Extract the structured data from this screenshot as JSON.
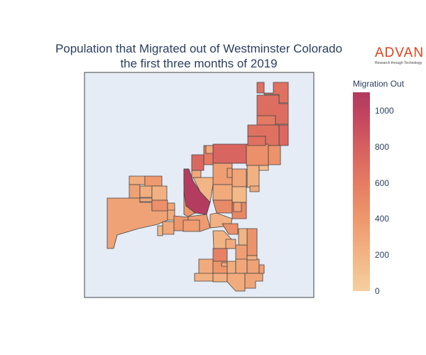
{
  "title_line1": "Population that Migrated out of Westminster Colorado",
  "title_line2": "the first three months of 2019",
  "logo": {
    "word": "ADVAN",
    "tagline": "Research through Technology"
  },
  "colorbar": {
    "title": "Migration Out",
    "range": [
      0,
      1100
    ],
    "ticks": [
      "0",
      "200",
      "400",
      "600",
      "800",
      "1000"
    ],
    "colors": [
      "#f5d0a0",
      "#f2b484",
      "#ee986d",
      "#e57c62",
      "#d66060",
      "#c04360",
      "#b03a5e"
    ]
  },
  "map_background": "#e5ecf6",
  "chart_data": {
    "type": "choropleth",
    "title": "Population that Migrated out of Westminster Colorado the first three months of 2019",
    "colorbar_title": "Migration Out",
    "color_range": [
      0,
      1100
    ],
    "regions": [
      {
        "v": 620
      },
      {
        "v": 650
      },
      {
        "v": 560
      },
      {
        "v": 680
      },
      {
        "v": 620
      },
      {
        "v": 700
      },
      {
        "v": 420
      },
      {
        "v": 400
      },
      {
        "v": 620
      },
      {
        "v": 560
      },
      {
        "v": 680
      },
      {
        "v": 250
      },
      {
        "v": 210
      },
      {
        "v": 200
      },
      {
        "v": 120
      },
      {
        "v": 330
      },
      {
        "v": 280
      },
      {
        "v": 230
      },
      {
        "v": 360
      },
      {
        "v": 220
      },
      {
        "v": 200
      },
      {
        "v": 310
      },
      {
        "v": 300
      },
      {
        "v": 420
      },
      {
        "v": 250
      },
      {
        "v": 240
      },
      {
        "v": 1050
      },
      {
        "v": 180
      },
      {
        "v": 380
      },
      {
        "v": 250
      },
      {
        "v": 150
      },
      {
        "v": 460
      },
      {
        "v": 480
      },
      {
        "v": 350
      },
      {
        "v": 380
      },
      {
        "v": 260
      },
      {
        "v": 150
      },
      {
        "v": 200
      },
      {
        "v": 190
      },
      {
        "v": 240
      },
      {
        "v": 400
      },
      {
        "v": 320
      },
      {
        "v": 520
      },
      {
        "v": 250
      },
      {
        "v": 380
      },
      {
        "v": 230
      },
      {
        "v": 260
      },
      {
        "v": 300
      },
      {
        "v": 200
      },
      {
        "v": 220
      },
      {
        "v": 240
      },
      {
        "v": 280
      },
      {
        "v": 320
      },
      {
        "v": 420
      },
      {
        "v": 180
      },
      {
        "v": 340
      },
      {
        "v": 280
      },
      {
        "v": 320
      },
      {
        "v": 260
      },
      {
        "v": 300
      },
      {
        "v": 250
      },
      {
        "v": 220
      },
      {
        "v": 260
      }
    ]
  }
}
